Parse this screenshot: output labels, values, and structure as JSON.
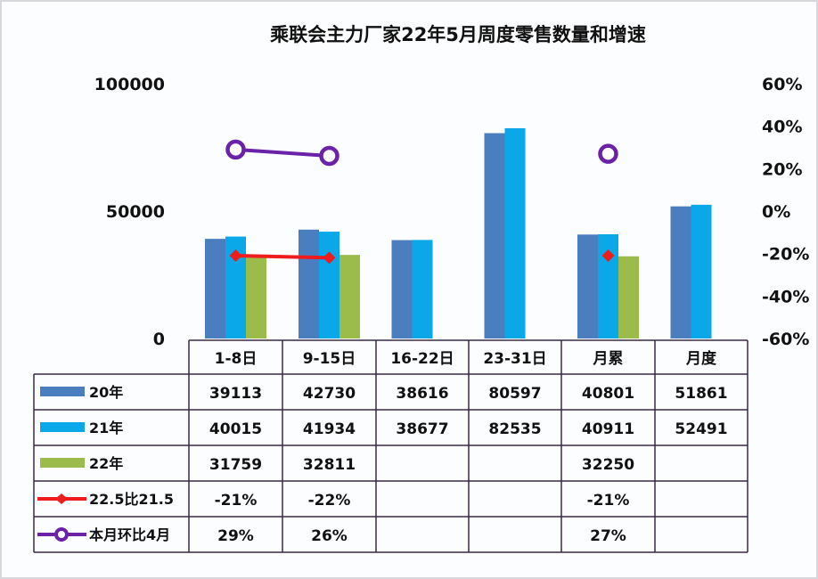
{
  "chart_data": {
    "type": "bar",
    "title": "乘联会主力厂家22年5月周度零售数量和增速",
    "categories": [
      "1-8日",
      "9-15日",
      "16-22日",
      "23-31日",
      "月累",
      "月度"
    ],
    "y_left": {
      "ylim": [
        0,
        100000
      ],
      "ticks": [
        "100000",
        "50000",
        "0"
      ],
      "tick_values": [
        100000,
        50000,
        0
      ]
    },
    "y_right": {
      "ylim": [
        -60,
        60
      ],
      "ticks": [
        "60%",
        "40%",
        "20%",
        "0%",
        "-20%",
        "-40%",
        "-60%"
      ],
      "tick_values": [
        60,
        40,
        20,
        0,
        -20,
        -40,
        -60
      ]
    },
    "series": [
      {
        "name": "20年",
        "kind": "bar",
        "color": "#4a7ebf",
        "values": [
          39113,
          42730,
          38616,
          80597,
          40801,
          51861
        ],
        "labels": [
          "39113",
          "42730",
          "38616",
          "80597",
          "40801",
          "51861"
        ]
      },
      {
        "name": "21年",
        "kind": "bar",
        "color": "#0aa8e8",
        "values": [
          40015,
          41934,
          38677,
          82535,
          40911,
          52491
        ],
        "labels": [
          "40015",
          "41934",
          "38677",
          "82535",
          "40911",
          "52491"
        ]
      },
      {
        "name": "22年",
        "kind": "bar",
        "color": "#9bbb4a",
        "values": [
          31759,
          32811,
          null,
          null,
          32250,
          null
        ],
        "labels": [
          "31759",
          "32811",
          "",
          "",
          "32250",
          ""
        ]
      },
      {
        "name": "22.5比21.5",
        "kind": "line",
        "marker": "diamond",
        "color": "#ee1c1c",
        "axis": "right",
        "values": [
          -21,
          -22,
          null,
          null,
          -21,
          null
        ],
        "labels": [
          "-21%",
          "-22%",
          "",
          "",
          "-21%",
          ""
        ]
      },
      {
        "name": "本月环比4月",
        "kind": "line",
        "marker": "circle",
        "color": "#6a22a8",
        "axis": "right",
        "values": [
          29,
          26,
          null,
          null,
          27,
          null
        ],
        "labels": [
          "29%",
          "26%",
          "",
          "",
          "27%",
          ""
        ]
      }
    ],
    "legend": "bottom-left data table"
  }
}
